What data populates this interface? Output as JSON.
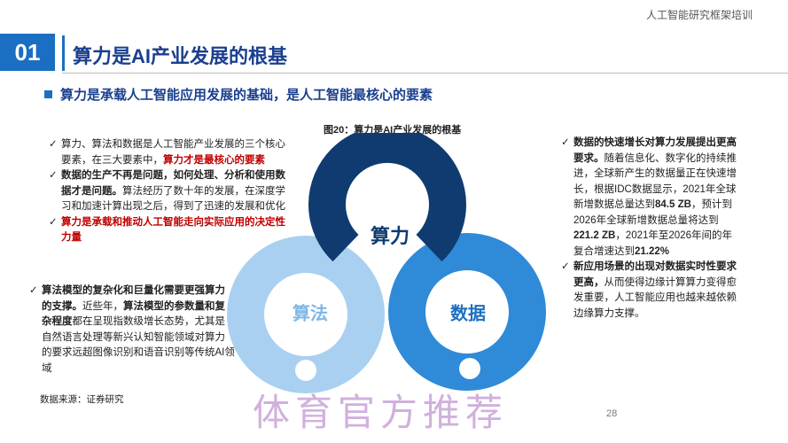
{
  "header": {
    "note": "人工智能研究框架培训",
    "number": "01",
    "title": "算力是AI产业发展的根基",
    "subtitle": "算力是承载人工智能应用发展的基础，是人工智能最核心的要素"
  },
  "figure": {
    "caption": "图20：算力是AI产业发展的根基",
    "nodes": [
      {
        "label": "算力"
      },
      {
        "label": "算法"
      },
      {
        "label": "数据"
      }
    ]
  },
  "left": {
    "bullets": [
      {
        "runs": [
          {
            "text": "算力、算法和数据是人工智能产业发展的三个核心要素，在三大要素中，",
            "style": "normal"
          },
          {
            "text": "算力才是最核心的要素",
            "style": "red"
          }
        ]
      },
      {
        "runs": [
          {
            "text": "数据的生产不再是问题，如何处理、分析和使用数据才是问题。",
            "style": "bold"
          },
          {
            "text": "算法经历了数十年的发展，在深度学习和加速计算出现之后，得到了迅速的发展和优化",
            "style": "normal"
          }
        ]
      },
      {
        "runs": [
          {
            "text": "算力是承载和推动人工智能走向实际应用的决定性力量",
            "style": "red"
          }
        ]
      }
    ]
  },
  "left_bottom": {
    "bullets": [
      {
        "runs": [
          {
            "text": "算法模型的复杂化和巨量化需要更强算力的支撑。",
            "style": "bold"
          },
          {
            "text": "近些年，",
            "style": "normal"
          },
          {
            "text": "算法模型的参数量和复杂程度",
            "style": "bold"
          },
          {
            "text": "都在呈现指数级增长态势，尤其是自然语言处理等新兴认知智能领域对算力的要求远超图像识别和语音识别等传统AI领域",
            "style": "normal"
          }
        ]
      }
    ]
  },
  "source": "数据来源：证券研究",
  "right": {
    "bullets": [
      {
        "runs": [
          {
            "text": "数据的快速增长对算力发展提出更高要求。",
            "style": "bold"
          },
          {
            "text": "随着信息化、数字化的持续推进，全球新产生的数据量正在快速增长，根据IDC数据显示，2021年全球新增数据总量达到",
            "style": "normal"
          },
          {
            "text": "84.5 ZB",
            "style": "bold"
          },
          {
            "text": "，预计到2026年全球新增数据总量将达到",
            "style": "normal"
          },
          {
            "text": "221.2 ZB",
            "style": "bold"
          },
          {
            "text": "，2021年至2026年间的年复合增速达到",
            "style": "normal"
          },
          {
            "text": "21.22%",
            "style": "bold"
          }
        ]
      },
      {
        "runs": [
          {
            "text": "新应用场景的出现对数据实时性要求更高，",
            "style": "bold"
          },
          {
            "text": "从而使得边缘计算算力变得愈发重要，人工智能应用也越来越依赖边缘算力支撑。",
            "style": "normal"
          }
        ]
      }
    ]
  },
  "page_number": "28",
  "watermark": "体育官方推荐"
}
